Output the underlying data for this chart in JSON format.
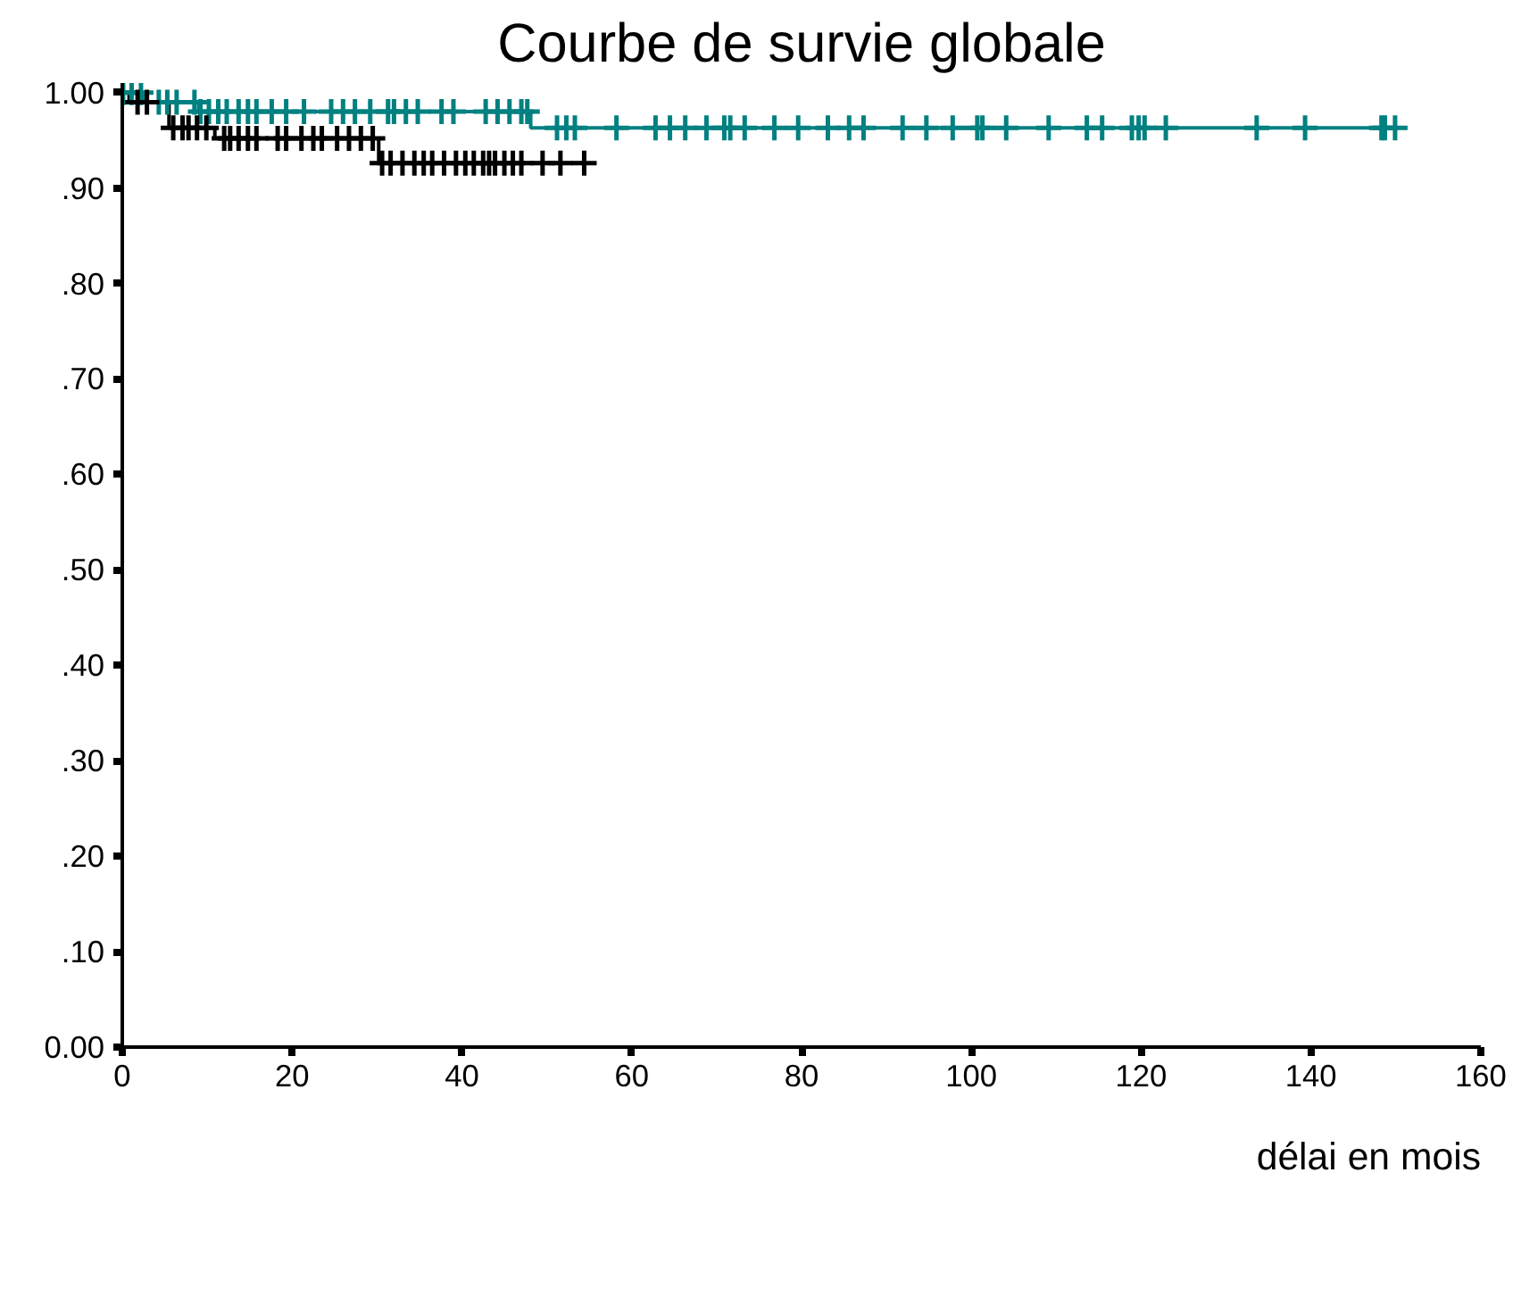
{
  "chart_data": {
    "type": "step",
    "title": "Courbe de survie globale",
    "xlabel": "délai en mois",
    "xlim": [
      0,
      160
    ],
    "xticks": [
      0,
      20,
      40,
      60,
      80,
      100,
      120,
      140,
      160
    ],
    "ylim": [
      0,
      1.01
    ],
    "yticks": [
      {
        "value": 0,
        "label": "0.00"
      },
      {
        "value": 0.1,
        "label": ".10"
      },
      {
        "value": 0.2,
        "label": ".20"
      },
      {
        "value": 0.3,
        "label": ".30"
      },
      {
        "value": 0.4,
        "label": ".40"
      },
      {
        "value": 0.5,
        "label": ".50"
      },
      {
        "value": 0.6,
        "label": ".60"
      },
      {
        "value": 0.7,
        "label": ".70"
      },
      {
        "value": 0.8,
        "label": ".80"
      },
      {
        "value": 0.9,
        "label": ".90"
      },
      {
        "value": 1.0,
        "label": "1.00"
      }
    ],
    "grid": false,
    "series": [
      {
        "color": "#008080",
        "x": [
          0,
          2.5,
          9,
          48.1,
          150
        ],
        "values": [
          1.0,
          0.99,
          0.98,
          0.963,
          0.963
        ]
      },
      {
        "color": "#000000",
        "x": [
          0,
          0.8,
          5.5,
          10.9,
          30.2,
          54.4
        ],
        "values": [
          1.0,
          0.99,
          0.963,
          0.952,
          0.926,
          0.926
        ]
      },
      {
        "type": "scatter",
        "marker": "cross",
        "color": "#008080",
        "x": [
          0.1,
          1.1,
          2.2,
          4.3,
          5.3,
          6.4,
          8.5,
          9.2,
          10.2,
          11.3,
          12.3,
          13.7,
          14.8,
          15.8,
          17.6,
          19.3,
          21.4,
          24.6,
          26.0,
          27.4,
          29.2,
          31.3,
          32.0,
          33.4,
          34.8,
          37.6,
          39.0,
          42.8,
          44.2,
          45.6,
          47.0,
          47.7,
          51.2,
          52.3,
          53.3,
          58.2,
          62.8,
          64.5,
          66.3,
          68.8,
          70.9,
          71.6,
          73.3,
          76.8,
          79.6,
          83.1,
          85.6,
          87.3,
          91.9,
          94.7,
          97.8,
          100.7,
          101.3,
          104.1,
          109.1,
          113.6,
          115.4,
          118.9,
          119.7,
          120.4,
          122.9,
          133.6,
          139.3,
          148.3,
          148.7,
          149.9
        ],
        "values": [
          1.0,
          1.0,
          1.0,
          0.99,
          0.99,
          0.99,
          0.99,
          0.98,
          0.98,
          0.98,
          0.98,
          0.98,
          0.98,
          0.98,
          0.98,
          0.98,
          0.98,
          0.98,
          0.98,
          0.98,
          0.98,
          0.98,
          0.98,
          0.98,
          0.98,
          0.98,
          0.98,
          0.98,
          0.98,
          0.98,
          0.98,
          0.98,
          0.963,
          0.963,
          0.963,
          0.963,
          0.963,
          0.963,
          0.963,
          0.963,
          0.963,
          0.963,
          0.963,
          0.963,
          0.963,
          0.963,
          0.963,
          0.963,
          0.963,
          0.963,
          0.963,
          0.963,
          0.963,
          0.963,
          0.963,
          0.963,
          0.963,
          0.963,
          0.963,
          0.963,
          0.963,
          0.963,
          0.963,
          0.963,
          0.963,
          0.963
        ]
      },
      {
        "type": "scatter",
        "marker": "cross",
        "color": "#000000",
        "x": [
          1.8,
          2.9,
          6.0,
          7.1,
          7.8,
          8.8,
          9.9,
          12.0,
          12.7,
          13.7,
          14.8,
          15.8,
          18.3,
          19.3,
          21.1,
          22.5,
          23.5,
          25.3,
          26.7,
          28.1,
          29.5,
          30.6,
          31.6,
          33.0,
          34.4,
          35.5,
          36.5,
          37.9,
          39.3,
          40.4,
          41.4,
          42.5,
          43.2,
          43.9,
          45.0,
          46.0,
          47.0,
          49.5,
          51.6,
          54.4
        ],
        "values": [
          0.99,
          0.99,
          0.963,
          0.963,
          0.963,
          0.963,
          0.963,
          0.952,
          0.952,
          0.952,
          0.952,
          0.952,
          0.952,
          0.952,
          0.952,
          0.952,
          0.952,
          0.952,
          0.952,
          0.952,
          0.952,
          0.926,
          0.926,
          0.926,
          0.926,
          0.926,
          0.926,
          0.926,
          0.926,
          0.926,
          0.926,
          0.926,
          0.926,
          0.926,
          0.926,
          0.926,
          0.926,
          0.926,
          0.926,
          0.926
        ]
      }
    ]
  }
}
